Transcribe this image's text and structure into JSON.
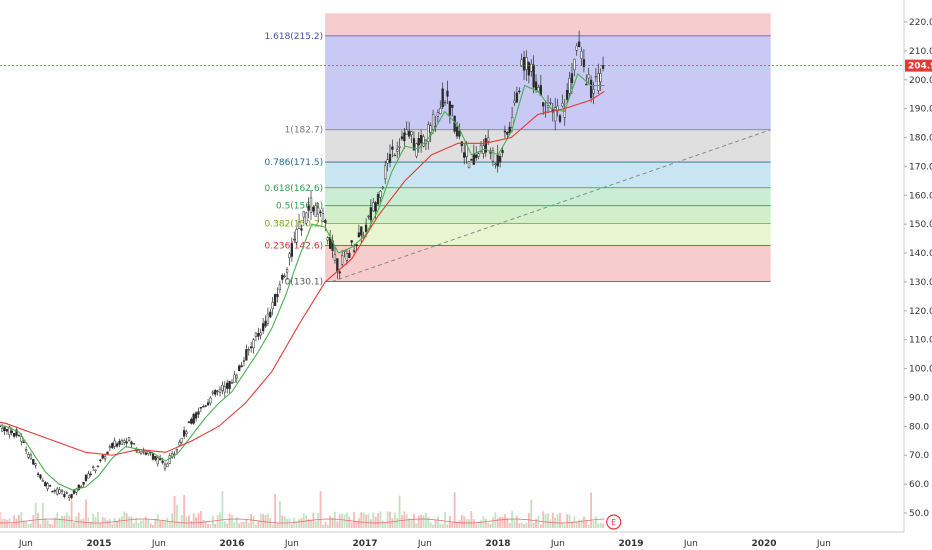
{
  "chart_data": {
    "type": "line",
    "title": "",
    "xlabel": "",
    "ylabel": "",
    "ylim": [
      45,
      223
    ],
    "y_ticks": [
      50,
      60,
      70,
      80,
      90,
      100,
      110,
      120,
      130,
      140,
      150,
      160,
      170,
      180,
      190,
      200,
      210,
      220
    ],
    "x_ticks": [
      {
        "t": 2014.45,
        "label": "Jun"
      },
      {
        "t": 2015.0,
        "label": "2015"
      },
      {
        "t": 2015.45,
        "label": "Jun"
      },
      {
        "t": 2016.0,
        "label": "2016"
      },
      {
        "t": 2016.45,
        "label": "Jun"
      },
      {
        "t": 2017.0,
        "label": "2017"
      },
      {
        "t": 2017.45,
        "label": "Jun"
      },
      {
        "t": 2018.0,
        "label": "2018"
      },
      {
        "t": 2018.45,
        "label": "Jun"
      },
      {
        "t": 2019.0,
        "label": "2019"
      },
      {
        "t": 2019.45,
        "label": "Jun"
      },
      {
        "t": 2020.0,
        "label": "2020"
      },
      {
        "t": 2020.45,
        "label": "Jun"
      }
    ],
    "current_price": {
      "value": 204.9,
      "label": "204.9",
      "color": "#e53935"
    },
    "event_marker": {
      "label": "E",
      "t": 2018.87
    },
    "fibonacci": {
      "t_start": 2016.7,
      "t_end": 2020.05,
      "levels": [
        {
          "label": "1.618(215.2)",
          "value": 215.2,
          "color": "#4c4ca8",
          "fill": "rgba(100,100,230,0.35)"
        },
        {
          "label": "1(182.7)",
          "value": 182.7,
          "color": "#777777",
          "fill": "rgba(150,150,150,0.30)"
        },
        {
          "label": "0.786(171.5)",
          "value": 171.5,
          "color": "#1e6f8f",
          "fill": "rgba(100,180,220,0.35)"
        },
        {
          "label": "0.618(162.6)",
          "value": 162.6,
          "color": "#2e9e4f",
          "fill": "rgba(120,210,150,0.40)"
        },
        {
          "label": "0.5(156.4)",
          "value": 156.4,
          "color": "#2e9e4f",
          "fill": "rgba(140,215,120,0.40)"
        },
        {
          "label": "0.382(150.2)",
          "value": 150.2,
          "color": "#7aa520",
          "fill": "rgba(200,230,140,0.40)"
        },
        {
          "label": "0.236(142.6)",
          "value": 142.6,
          "color": "#d32f2f",
          "fill": "rgba(230,110,110,0.35)"
        },
        {
          "label": "0(130.1)",
          "value": 130.1,
          "color": "#555555",
          "fill": "rgba(0,0,0,0)"
        }
      ],
      "top_band": {
        "value": 223,
        "fill": "rgba(230,110,110,0.35)"
      }
    },
    "trendline": {
      "t1": 2016.75,
      "y1": 130.1,
      "t2": 2020.05,
      "y2": 182.7,
      "color": "#888888",
      "style": "dashed"
    },
    "series": [
      {
        "color": "#555555",
        "t": [
          2014.2,
          2014.3,
          2014.4,
          2014.5,
          2014.6,
          2014.7,
          2014.8,
          2014.9,
          2015.0,
          2015.1,
          2015.2,
          2015.3,
          2015.4,
          2015.5,
          2015.6,
          2015.7,
          2015.8,
          2015.9,
          2016.0,
          2016.1,
          2016.2,
          2016.3,
          2016.4,
          2016.5,
          2016.6,
          2016.7,
          2016.8,
          2016.9,
          2017.0,
          2017.1,
          2017.2,
          2017.3,
          2017.4,
          2017.5,
          2017.6,
          2017.7,
          2017.8,
          2017.9,
          2018.0,
          2018.1,
          2018.2,
          2018.3,
          2018.4,
          2018.5,
          2018.6,
          2018.7,
          2018.8
        ],
        "values": [
          81,
          79,
          77,
          68,
          60,
          57,
          56,
          62,
          67,
          73,
          76,
          72,
          70,
          66,
          74,
          82,
          88,
          92,
          95,
          104,
          112,
          120,
          134,
          148,
          157,
          150,
          135,
          142,
          148,
          160,
          175,
          182,
          176,
          184,
          195,
          182,
          170,
          178,
          172,
          185,
          208,
          198,
          188,
          190,
          212,
          196,
          202
        ]
      },
      {
        "color": "#4caf50",
        "t": [
          2014.2,
          2014.3,
          2014.4,
          2014.5,
          2014.6,
          2014.7,
          2014.8,
          2014.9,
          2015.0,
          2015.1,
          2015.2,
          2015.3,
          2015.4,
          2015.5,
          2015.6,
          2015.7,
          2015.8,
          2015.9,
          2016.0,
          2016.1,
          2016.2,
          2016.3,
          2016.4,
          2016.5,
          2016.6,
          2016.7,
          2016.8,
          2016.9,
          2017.0,
          2017.1,
          2017.2,
          2017.3,
          2017.4,
          2017.5,
          2017.6,
          2017.7,
          2017.8,
          2017.9,
          2018.0,
          2018.1,
          2018.2,
          2018.3,
          2018.4,
          2018.5,
          2018.6,
          2018.7,
          2018.8
        ],
        "values": [
          81,
          80,
          78,
          71,
          64,
          60,
          58,
          59,
          63,
          69,
          73,
          72,
          71,
          68,
          71,
          77,
          83,
          88,
          92,
          99,
          106,
          114,
          125,
          138,
          150,
          149,
          140,
          142,
          146,
          155,
          168,
          177,
          176,
          181,
          189,
          184,
          174,
          176,
          174,
          182,
          198,
          196,
          190,
          189,
          202,
          198,
          198
        ]
      },
      {
        "color": "#e53935",
        "t": [
          2014.0,
          2014.3,
          2014.6,
          2014.9,
          2015.1,
          2015.3,
          2015.5,
          2015.7,
          2015.9,
          2016.1,
          2016.3,
          2016.5,
          2016.7,
          2016.9,
          2017.1,
          2017.3,
          2017.5,
          2017.7,
          2017.9,
          2018.1,
          2018.3,
          2018.5,
          2018.7,
          2018.8
        ],
        "values": [
          84,
          81,
          76,
          71,
          70,
          72,
          71,
          75,
          80,
          88,
          99,
          115,
          130,
          138,
          153,
          165,
          174,
          178,
          178,
          180,
          188,
          190,
          193,
          196
        ]
      }
    ]
  }
}
